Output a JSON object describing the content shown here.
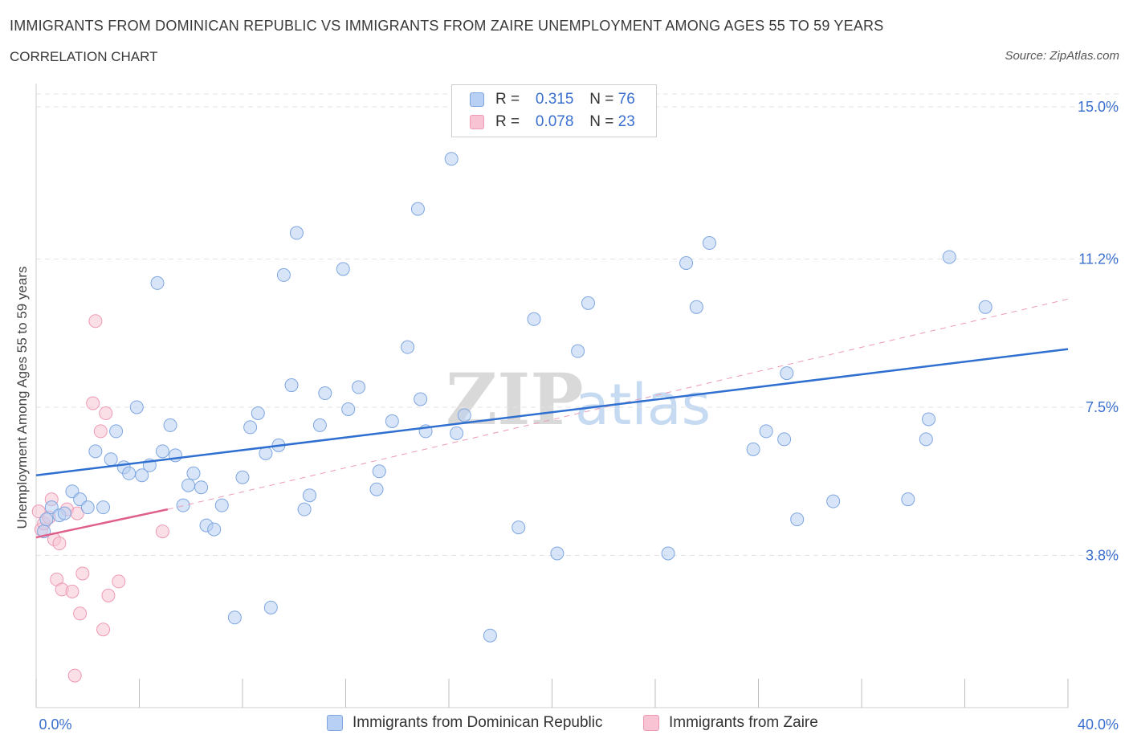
{
  "header": {
    "title": "IMMIGRANTS FROM DOMINICAN REPUBLIC VS IMMIGRANTS FROM ZAIRE UNEMPLOYMENT AMONG AGES 55 TO 59 YEARS",
    "subtitle": "CORRELATION CHART",
    "source": "Source: ZipAtlas.com"
  },
  "legend": {
    "rows": [
      {
        "r_label": "R =",
        "r_value": "0.315",
        "n_label": "N =",
        "n_value": "76"
      },
      {
        "r_label": "R =",
        "r_value": "0.078",
        "n_label": "N =",
        "n_value": "23"
      }
    ]
  },
  "colors": {
    "blue_fill": "#b8d0f3",
    "blue_stroke": "#7ea6e0",
    "blue_line": "#2f6fd0",
    "pink_fill": "#f8c4d3",
    "pink_stroke": "#ee9ab4",
    "pink_line": "#e0608c",
    "grid": "#e3e3e3",
    "axis_text": "#3a6fcf"
  },
  "chart_data": {
    "type": "scatter",
    "title": "IMMIGRANTS FROM DOMINICAN REPUBLIC VS IMMIGRANTS FROM ZAIRE UNEMPLOYMENT AMONG AGES 55 TO 59 YEARS",
    "xlabel": "",
    "ylabel": "Unemployment Among Ages 55 to 59 years",
    "xlim": [
      0,
      40
    ],
    "ylim": [
      0,
      15.3
    ],
    "x_tick_labels": [
      {
        "value": 0,
        "label": "0.0%"
      },
      {
        "value": 40,
        "label": "40.0%"
      }
    ],
    "y_ticks": [
      {
        "value": 3.8,
        "label": "3.8%"
      },
      {
        "value": 7.5,
        "label": "7.5%"
      },
      {
        "value": 11.2,
        "label": "11.2%"
      },
      {
        "value": 15.0,
        "label": "15.0%"
      }
    ],
    "watermark": {
      "part1": "ZIP",
      "part2": "atlas"
    },
    "series": [
      {
        "name": "Immigrants from Dominican Republic",
        "color": "blue",
        "points": [
          [
            0.3,
            4.4
          ],
          [
            0.4,
            4.7
          ],
          [
            0.6,
            5.0
          ],
          [
            0.9,
            4.8
          ],
          [
            1.1,
            4.85
          ],
          [
            1.4,
            5.4
          ],
          [
            1.7,
            5.2
          ],
          [
            2.0,
            5.0
          ],
          [
            2.3,
            6.4
          ],
          [
            2.6,
            5.0
          ],
          [
            2.9,
            6.2
          ],
          [
            3.1,
            6.9
          ],
          [
            3.4,
            6.0
          ],
          [
            3.6,
            5.85
          ],
          [
            3.9,
            7.5
          ],
          [
            4.1,
            5.8
          ],
          [
            4.4,
            6.05
          ],
          [
            4.7,
            10.6
          ],
          [
            4.9,
            6.4
          ],
          [
            5.2,
            7.05
          ],
          [
            5.4,
            6.3
          ],
          [
            5.7,
            5.05
          ],
          [
            5.9,
            5.55
          ],
          [
            6.1,
            5.85
          ],
          [
            6.4,
            5.5
          ],
          [
            6.6,
            4.55
          ],
          [
            6.9,
            4.45
          ],
          [
            7.2,
            5.05
          ],
          [
            7.7,
            2.25
          ],
          [
            8.0,
            5.75
          ],
          [
            8.3,
            7.0
          ],
          [
            8.6,
            7.35
          ],
          [
            8.9,
            6.35
          ],
          [
            9.1,
            2.5
          ],
          [
            9.4,
            6.55
          ],
          [
            9.6,
            10.8
          ],
          [
            9.9,
            8.05
          ],
          [
            10.1,
            11.85
          ],
          [
            10.4,
            4.95
          ],
          [
            10.6,
            5.3
          ],
          [
            11.0,
            7.05
          ],
          [
            11.2,
            7.85
          ],
          [
            11.9,
            10.95
          ],
          [
            12.1,
            7.45
          ],
          [
            12.5,
            8.0
          ],
          [
            13.2,
            5.45
          ],
          [
            13.3,
            5.9
          ],
          [
            13.8,
            7.15
          ],
          [
            14.4,
            9.0
          ],
          [
            14.8,
            12.45
          ],
          [
            14.9,
            7.7
          ],
          [
            15.1,
            6.9
          ],
          [
            16.1,
            13.7
          ],
          [
            16.3,
            6.85
          ],
          [
            16.6,
            7.3
          ],
          [
            17.6,
            1.8
          ],
          [
            18.7,
            4.5
          ],
          [
            19.3,
            9.7
          ],
          [
            20.2,
            3.85
          ],
          [
            21.0,
            8.9
          ],
          [
            21.4,
            10.1
          ],
          [
            24.5,
            3.85
          ],
          [
            25.2,
            11.1
          ],
          [
            25.6,
            10.0
          ],
          [
            26.1,
            11.6
          ],
          [
            27.8,
            6.45
          ],
          [
            28.3,
            6.9
          ],
          [
            29.0,
            6.7
          ],
          [
            29.1,
            8.35
          ],
          [
            29.5,
            4.7
          ],
          [
            30.9,
            5.15
          ],
          [
            33.8,
            5.2
          ],
          [
            34.5,
            6.7
          ],
          [
            34.6,
            7.2
          ],
          [
            35.4,
            11.25
          ],
          [
            36.8,
            10.0
          ]
        ],
        "trend": {
          "x0": 0,
          "y0": 5.8,
          "x1": 40,
          "y1": 8.95
        }
      },
      {
        "name": "Immigrants from Zaire",
        "color": "pink",
        "points": [
          [
            0.1,
            4.9
          ],
          [
            0.2,
            4.45
          ],
          [
            0.3,
            4.6
          ],
          [
            0.5,
            4.75
          ],
          [
            0.6,
            5.2
          ],
          [
            0.7,
            4.2
          ],
          [
            0.8,
            3.2
          ],
          [
            0.9,
            4.1
          ],
          [
            1.0,
            2.95
          ],
          [
            1.2,
            4.95
          ],
          [
            1.4,
            2.9
          ],
          [
            1.6,
            4.85
          ],
          [
            1.7,
            2.35
          ],
          [
            1.8,
            3.35
          ],
          [
            2.2,
            7.6
          ],
          [
            2.3,
            9.65
          ],
          [
            2.5,
            6.9
          ],
          [
            2.6,
            1.95
          ],
          [
            2.7,
            7.35
          ],
          [
            2.8,
            2.8
          ],
          [
            3.2,
            3.15
          ],
          [
            1.5,
            0.8
          ],
          [
            4.9,
            4.4
          ]
        ],
        "trend": {
          "x0": 0,
          "y0": 4.25,
          "x1": 5.1,
          "y1": 4.95
        },
        "trend_extended": {
          "x0": 5.1,
          "y0": 4.95,
          "x1": 40,
          "y1": 10.2
        }
      }
    ]
  },
  "bottom_legend": {
    "items": [
      {
        "label": "Immigrants from Dominican Republic"
      },
      {
        "label": "Immigrants from Zaire"
      }
    ]
  }
}
